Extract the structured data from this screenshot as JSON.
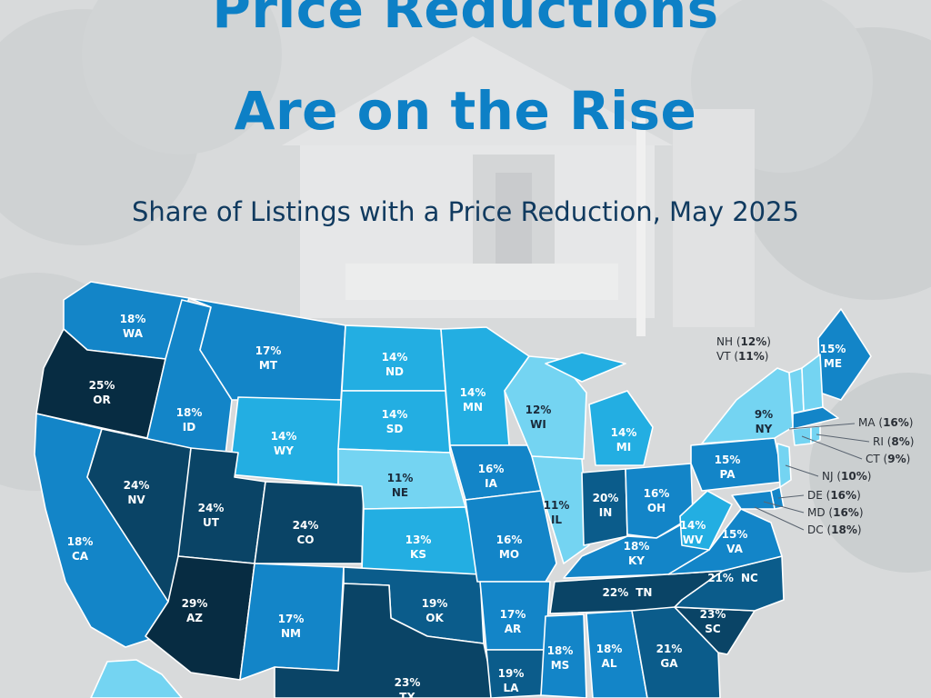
{
  "title": {
    "line1": "Price Reductions",
    "line2": "Are on the Rise"
  },
  "subtitle": "Share of Listings with a Price Reduction, May 2025",
  "colors": {
    "band_9_12": "#74d4f2",
    "band_13_14": "#23aee2",
    "band_15_18": "#1385c8",
    "band_19_21": "#0b5c8b",
    "band_22_24": "#0a4466",
    "band_25_plus": "#072c42",
    "title": "#0d80c6",
    "subtitle": "#103a5f"
  },
  "states": [
    {
      "code": "WA",
      "value": "18%"
    },
    {
      "code": "OR",
      "value": "25%"
    },
    {
      "code": "CA",
      "value": "18%"
    },
    {
      "code": "ID",
      "value": "18%"
    },
    {
      "code": "NV",
      "value": "24%"
    },
    {
      "code": "MT",
      "value": "17%"
    },
    {
      "code": "WY",
      "value": "14%"
    },
    {
      "code": "UT",
      "value": "24%"
    },
    {
      "code": "AZ",
      "value": "29%"
    },
    {
      "code": "CO",
      "value": "24%"
    },
    {
      "code": "NM",
      "value": "17%"
    },
    {
      "code": "ND",
      "value": "14%"
    },
    {
      "code": "SD",
      "value": "14%"
    },
    {
      "code": "NE",
      "value": "11%"
    },
    {
      "code": "KS",
      "value": "13%"
    },
    {
      "code": "OK",
      "value": "19%"
    },
    {
      "code": "TX",
      "value": "23%"
    },
    {
      "code": "MN",
      "value": "14%"
    },
    {
      "code": "IA",
      "value": "16%"
    },
    {
      "code": "MO",
      "value": "16%"
    },
    {
      "code": "AR",
      "value": "17%"
    },
    {
      "code": "LA",
      "value": "19%"
    },
    {
      "code": "WI",
      "value": "12%"
    },
    {
      "code": "IL",
      "value": "11%"
    },
    {
      "code": "MI",
      "value": "14%"
    },
    {
      "code": "IN",
      "value": "20%"
    },
    {
      "code": "OH",
      "value": "16%"
    },
    {
      "code": "KY",
      "value": "18%"
    },
    {
      "code": "TN",
      "value": "22%"
    },
    {
      "code": "MS",
      "value": "18%"
    },
    {
      "code": "AL",
      "value": "18%"
    },
    {
      "code": "GA",
      "value": "21%"
    },
    {
      "code": "SC",
      "value": "23%"
    },
    {
      "code": "NC",
      "value": "21%"
    },
    {
      "code": "VA",
      "value": "15%"
    },
    {
      "code": "WV",
      "value": "14%"
    },
    {
      "code": "PA",
      "value": "15%"
    },
    {
      "code": "NY",
      "value": "9%"
    },
    {
      "code": "ME",
      "value": "15%"
    }
  ],
  "callouts": [
    {
      "code": "NH",
      "value": "12%"
    },
    {
      "code": "VT",
      "value": "11%"
    },
    {
      "code": "MA",
      "value": "16%"
    },
    {
      "code": "RI",
      "value": "8%"
    },
    {
      "code": "CT",
      "value": "9%"
    },
    {
      "code": "NJ",
      "value": "10%"
    },
    {
      "code": "DE",
      "value": "16%"
    },
    {
      "code": "MD",
      "value": "16%"
    },
    {
      "code": "DC",
      "value": "18%"
    }
  ]
}
